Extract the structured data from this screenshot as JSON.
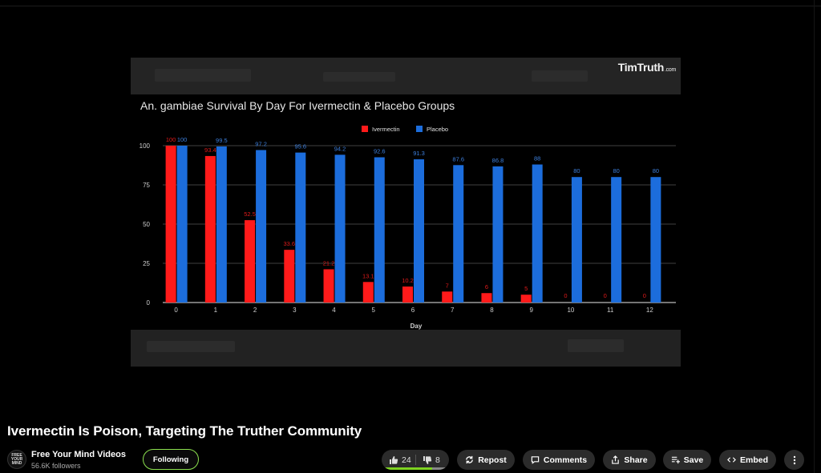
{
  "video": {
    "title": "Ivermectin Is Poison, Targeting The Truther Community",
    "watermark": "TimTruth",
    "watermark_suffix": ".com"
  },
  "channel": {
    "avatar_text": [
      "FREE",
      "YOUR",
      "MIND"
    ],
    "name": "Free Your Mind Videos",
    "followers": "56.6K followers",
    "follow_label": "Following"
  },
  "actions": {
    "likes": "24",
    "dislikes": "8",
    "like_ratio": 0.75,
    "repost_label": "Repost",
    "comments_label": "Comments",
    "share_label": "Share",
    "save_label": "Save",
    "embed_label": "Embed"
  },
  "colors": {
    "ivermectin": "#ff1a1a",
    "placebo": "#1c6ddc",
    "follow_border": "#8be04e",
    "vote_bar": "#7ed321"
  },
  "chart_data": {
    "type": "bar",
    "title": "An. gambiae Survival By Day For Ivermectin & Placebo Groups",
    "xlabel": "Day",
    "ylabel": "",
    "ylim": [
      0,
      100
    ],
    "yticks": [
      0,
      25,
      50,
      75,
      100
    ],
    "categories": [
      "0",
      "1",
      "2",
      "3",
      "4",
      "5",
      "6",
      "7",
      "8",
      "9",
      "10",
      "11",
      "12"
    ],
    "series": [
      {
        "name": "Ivermectin",
        "values": [
          100,
          93.4,
          52.5,
          33.6,
          21.2,
          13.1,
          10.2,
          7,
          6,
          5,
          0,
          0,
          0
        ],
        "labels": [
          "100",
          "93.4",
          "52.5",
          "33.6",
          "21.2",
          "13.1",
          "10.2",
          "7",
          "6",
          "5",
          "0",
          "0",
          "0"
        ]
      },
      {
        "name": "Placebo",
        "values": [
          100,
          99.5,
          97.2,
          95.6,
          94.2,
          92.6,
          91.3,
          87.6,
          86.8,
          88,
          80,
          80,
          80
        ],
        "labels": [
          "100",
          "99.5",
          "97.2",
          "95.6",
          "94.2",
          "92.6",
          "91.3",
          "87.6",
          "86.8",
          "88",
          "80",
          "80",
          "80"
        ]
      }
    ],
    "legend_position": "top-center",
    "grid": true
  }
}
